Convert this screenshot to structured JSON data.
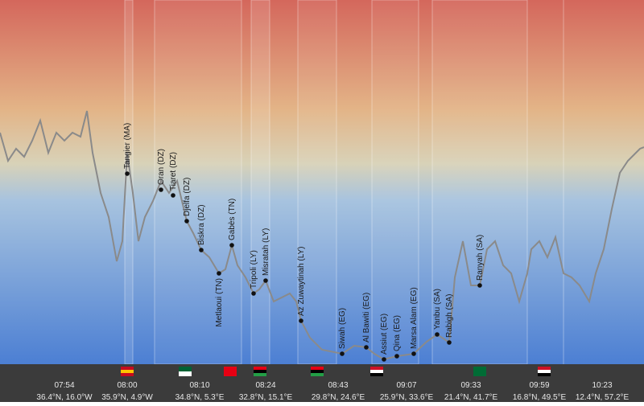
{
  "cities": [
    "Tangier (MA)",
    "Oran (DZ)",
    "Tiaret (DZ)",
    "Djelfa (DZ)",
    "Biskra (DZ)",
    "Gabès (TN)",
    "Metlaoui (TN)",
    "Tripoli (LY)",
    "Misratah (LY)",
    "Az Zuwaytinah (LY)",
    "Siwah (EG)",
    "Al Bawiti (EG)",
    "Assiut (EG)",
    "Qina (EG)",
    "Marsa Alam (EG)",
    "Yanbu (SA)",
    "Rabigh (SA)",
    "Ranyah (SA)"
  ],
  "timeline": [
    {
      "time": "07:54",
      "position": "36.4°N, 16.0°W"
    },
    {
      "time": "08:00",
      "position": "35.9°N, 4.9°W"
    },
    {
      "time": "08:10",
      "position": "34.8°N, 5.3°E"
    },
    {
      "time": "08:24",
      "position": "32.8°N, 15.1°E"
    },
    {
      "time": "08:43",
      "position": "29.8°N, 24.6°E"
    },
    {
      "time": "09:07",
      "position": "25.9°N, 33.6°E"
    },
    {
      "time": "09:33",
      "position": "21.4°N, 41.7°E"
    },
    {
      "time": "09:59",
      "position": "16.8°N, 49.5°E"
    },
    {
      "time": "10:23",
      "position": "12.4°N, 57.2°E"
    }
  ]
}
